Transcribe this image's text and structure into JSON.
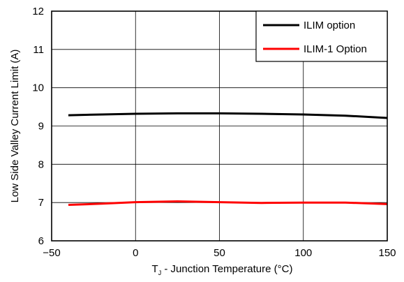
{
  "chart_data": {
    "type": "line",
    "xlabel_prefix": "T",
    "xlabel_sub": "J",
    "xlabel_rest": " - Junction Temperature (°C)",
    "ylabel": "Low Side Valley Current Limit (A)",
    "xlim": [
      -50,
      150
    ],
    "ylim": [
      6,
      12
    ],
    "xticks": [
      -50,
      0,
      50,
      100,
      150
    ],
    "xtick_labels": [
      "−50",
      "0",
      "50",
      "100",
      "150"
    ],
    "yticks": [
      6,
      7,
      8,
      9,
      10,
      11,
      12
    ],
    "ytick_labels": [
      "6",
      "7",
      "8",
      "9",
      "10",
      "11",
      "12"
    ],
    "grid": true,
    "legend_position": "top-right",
    "series": [
      {
        "name": "ILIM option",
        "color": "#000000",
        "x": [
          -40,
          -20,
          0,
          25,
          50,
          75,
          100,
          125,
          150
        ],
        "y": [
          9.28,
          9.3,
          9.32,
          9.33,
          9.33,
          9.32,
          9.3,
          9.27,
          9.21
        ]
      },
      {
        "name": "ILIM-1 Option",
        "color": "#ff0000",
        "x": [
          -40,
          -20,
          0,
          25,
          50,
          75,
          100,
          125,
          150
        ],
        "y": [
          6.94,
          6.97,
          7.01,
          7.03,
          7.01,
          6.99,
          7.0,
          7.0,
          6.96
        ]
      }
    ]
  }
}
